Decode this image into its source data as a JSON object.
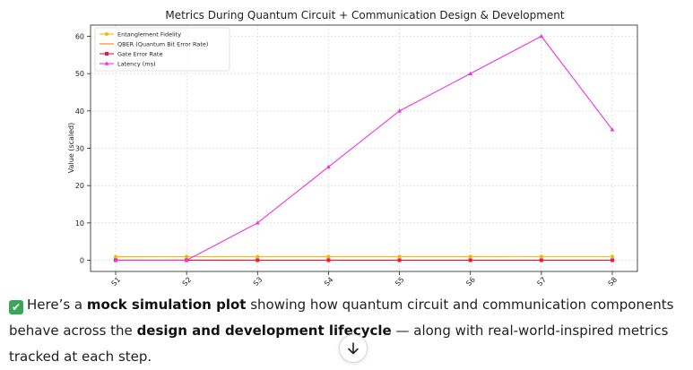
{
  "chart_data": {
    "type": "line",
    "title": "Metrics During Quantum Circuit + Communication Design & Development",
    "xlabel": "",
    "ylabel": "Value (scaled)",
    "categories": [
      "S1",
      "S2",
      "S3",
      "S4",
      "S5",
      "S6",
      "S7",
      "S8"
    ],
    "ylim": [
      -3,
      63
    ],
    "yticks": [
      0,
      10,
      20,
      30,
      40,
      50,
      60
    ],
    "grid": true,
    "legend_position": "top-left",
    "series": [
      {
        "name": "Entanglement Fidelity",
        "color": "#f5b800",
        "marker": "circle",
        "values": [
          0.95,
          0.96,
          0.97,
          0.97,
          0.98,
          0.98,
          0.99,
          0.99
        ]
      },
      {
        "name": "QBER (Quantum Bit Error Rate)",
        "color": "#ff7f0e",
        "marker": "none",
        "values": [
          0.05,
          0.04,
          0.03,
          0.03,
          0.02,
          0.02,
          0.01,
          0.01
        ]
      },
      {
        "name": "Gate Error Rate",
        "color": "#e6194b",
        "marker": "square",
        "values": [
          0.01,
          0.01,
          0.01,
          0.01,
          0.01,
          0.01,
          0.01,
          0.01
        ]
      },
      {
        "name": "Latency (ms)",
        "color": "#f032e6",
        "marker": "triangle",
        "values": [
          0,
          0,
          10,
          25,
          40,
          50,
          60,
          35
        ]
      }
    ]
  },
  "message": {
    "check_icon": "white-check-mark-emoji",
    "part1": "Here’s a ",
    "bold1": "mock simulation plot",
    "part2": " showing how quantum circuit and communication components behave across the ",
    "bold2": "design and development lifecycle",
    "part3": " — along with real-world-inspired metrics tracked at each step."
  },
  "scroll_button": {
    "icon": "arrow-down-icon"
  }
}
